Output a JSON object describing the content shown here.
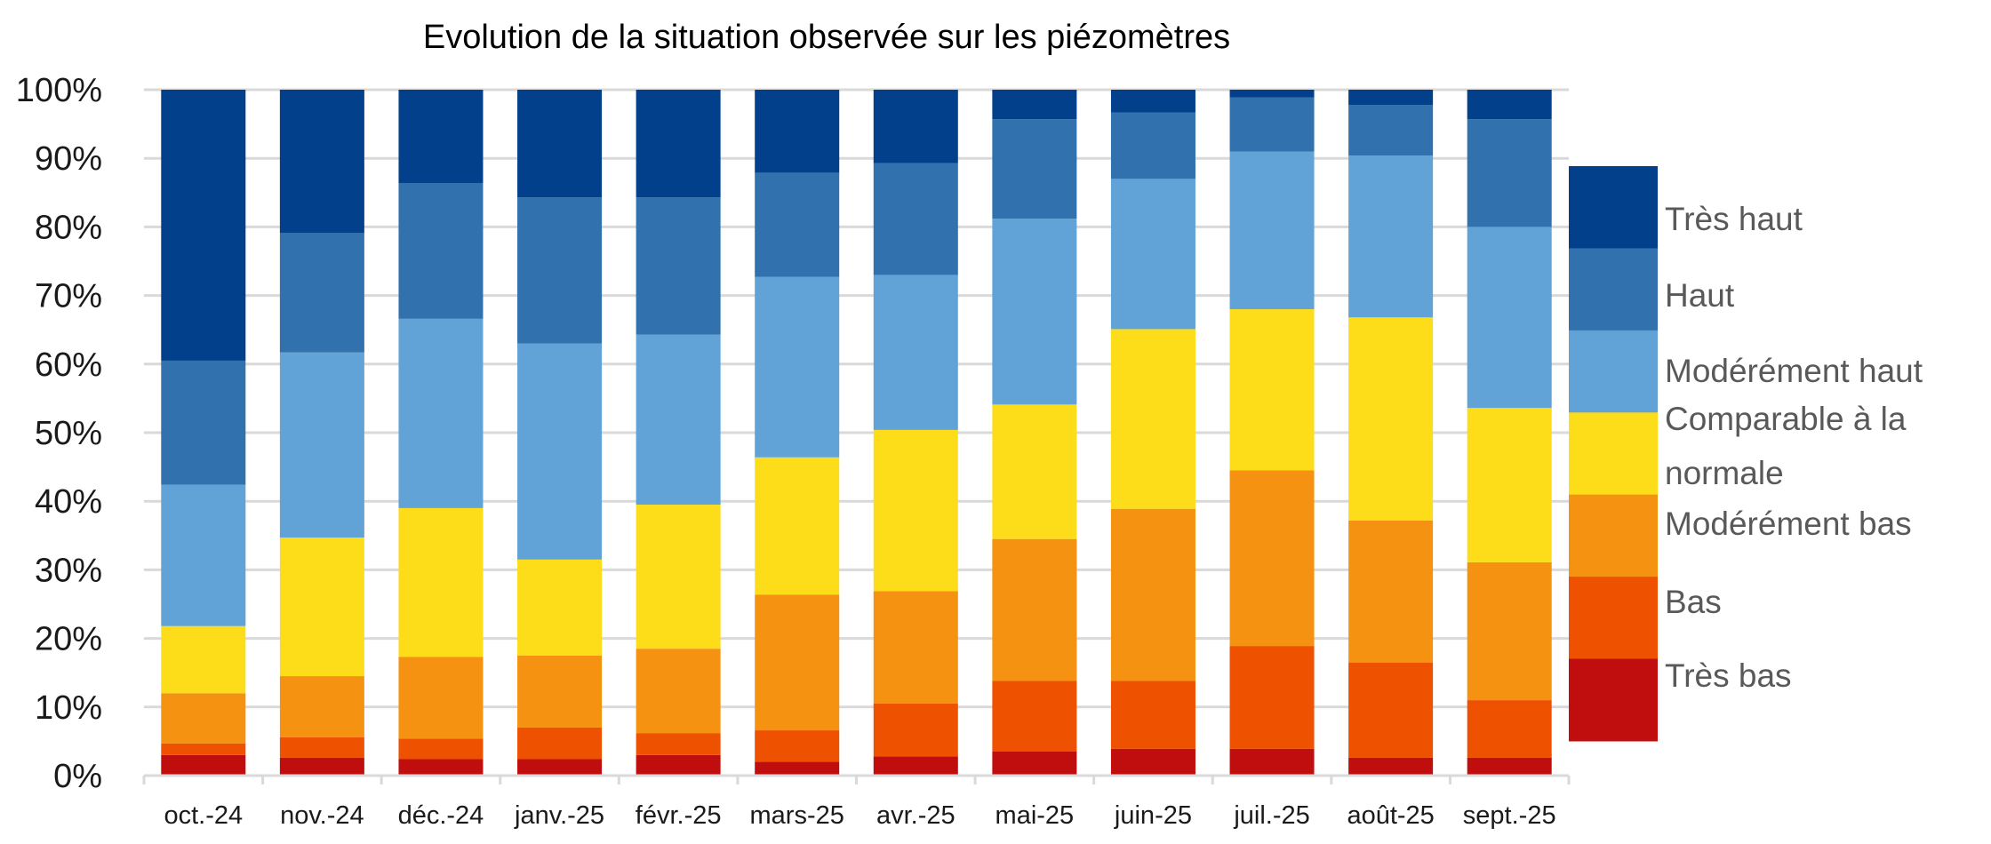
{
  "chart_data": {
    "type": "bar",
    "stacked": "percent",
    "title": "Evolution de la situation observée sur les  piézomètres",
    "xlabel": "",
    "ylabel": "",
    "ylim": [
      0,
      100
    ],
    "yticks": [
      "0%",
      "10%",
      "20%",
      "30%",
      "40%",
      "50%",
      "60%",
      "70%",
      "80%",
      "90%",
      "100%"
    ],
    "grid": true,
    "legend_position": "right",
    "categories": [
      "oct.-24",
      "nov.-24",
      "déc.-24",
      "janv.-25",
      "févr.-25",
      "mars-25",
      "avr.-25",
      "mai-25",
      "juin-25",
      "juil.-25",
      "août-25",
      "sept.-25"
    ],
    "series": [
      {
        "name": "Très bas",
        "color": "#C00D0D",
        "values": [
          3.0,
          2.6,
          2.4,
          2.4,
          3.0,
          2.0,
          2.8,
          3.5,
          3.9,
          3.9,
          2.6,
          2.6
        ]
      },
      {
        "name": "Bas",
        "color": "#EE5100",
        "values": [
          1.7,
          3.0,
          3.0,
          4.6,
          3.2,
          4.6,
          7.7,
          10.3,
          9.9,
          15.0,
          13.9,
          8.4
        ]
      },
      {
        "name": "Modérément bas",
        "color": "#F59211",
        "values": [
          7.3,
          8.9,
          11.9,
          10.5,
          12.3,
          19.8,
          16.4,
          20.7,
          25.1,
          25.6,
          20.7,
          20.1
        ]
      },
      {
        "name": "Comparable à la normale",
        "color": "#FDDD19",
        "values": [
          9.8,
          20.2,
          21.7,
          14.0,
          21.0,
          20.0,
          23.5,
          19.6,
          26.2,
          23.5,
          29.6,
          22.5
        ]
      },
      {
        "name": "Modérément haut",
        "color": "#61A3D6",
        "values": [
          20.6,
          27.0,
          27.6,
          31.5,
          24.8,
          26.3,
          22.6,
          27.1,
          21.9,
          23.0,
          23.6,
          26.4
        ]
      },
      {
        "name": "Haut",
        "color": "#3071AE",
        "values": [
          18.1,
          17.4,
          19.8,
          21.3,
          20.0,
          15.2,
          16.3,
          14.5,
          9.7,
          7.9,
          7.4,
          15.7
        ]
      },
      {
        "name": "Très haut",
        "color": "#02408B",
        "values": [
          39.5,
          20.9,
          13.6,
          15.7,
          15.7,
          12.1,
          10.7,
          4.3,
          3.3,
          1.1,
          2.2,
          4.3
        ]
      }
    ],
    "legend": [
      {
        "lines": [
          "Très haut"
        ]
      },
      {
        "lines": [
          "Haut"
        ]
      },
      {
        "lines": [
          "Modérément haut"
        ]
      },
      {
        "lines": [
          "Comparable à la",
          "normale"
        ]
      },
      {
        "lines": [
          "Modérément bas"
        ]
      },
      {
        "lines": [
          "Bas"
        ]
      },
      {
        "lines": [
          "Très bas"
        ]
      }
    ],
    "gridline_color": "#D9D9D9"
  }
}
